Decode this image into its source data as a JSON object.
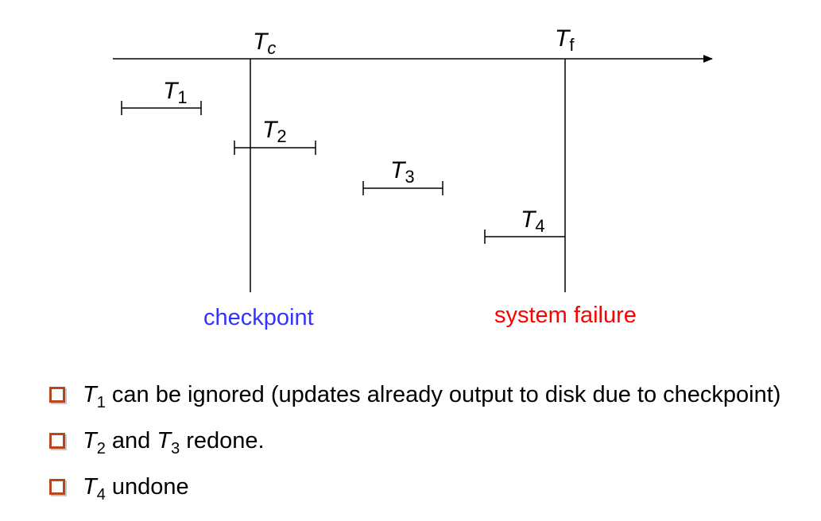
{
  "labels": {
    "tc": {
      "main": "T",
      "sub": "c"
    },
    "tf": {
      "main": "T",
      "sub": "f"
    },
    "t1": {
      "main": "T",
      "sub": "1"
    },
    "t2": {
      "main": "T",
      "sub": "2"
    },
    "t3": {
      "main": "T",
      "sub": "3"
    },
    "t4": {
      "main": "T",
      "sub": "4"
    },
    "checkpoint": "checkpoint",
    "system_failure": "system failure"
  },
  "colors": {
    "checkpoint": "#3333ff",
    "system_failure": "#ff0000",
    "bullet_box": "#b8461c"
  },
  "bullets": {
    "b1": {
      "t": "T",
      "sub": "1",
      "text": " can be ignored (updates already output to disk due to checkpoint)"
    },
    "b2": {
      "t1": "T",
      "sub1": "2",
      "mid": " and ",
      "t2": "T",
      "sub2": "3",
      "text": " redone."
    },
    "b3": {
      "t": "T",
      "sub": "4",
      "text": " undone"
    }
  }
}
